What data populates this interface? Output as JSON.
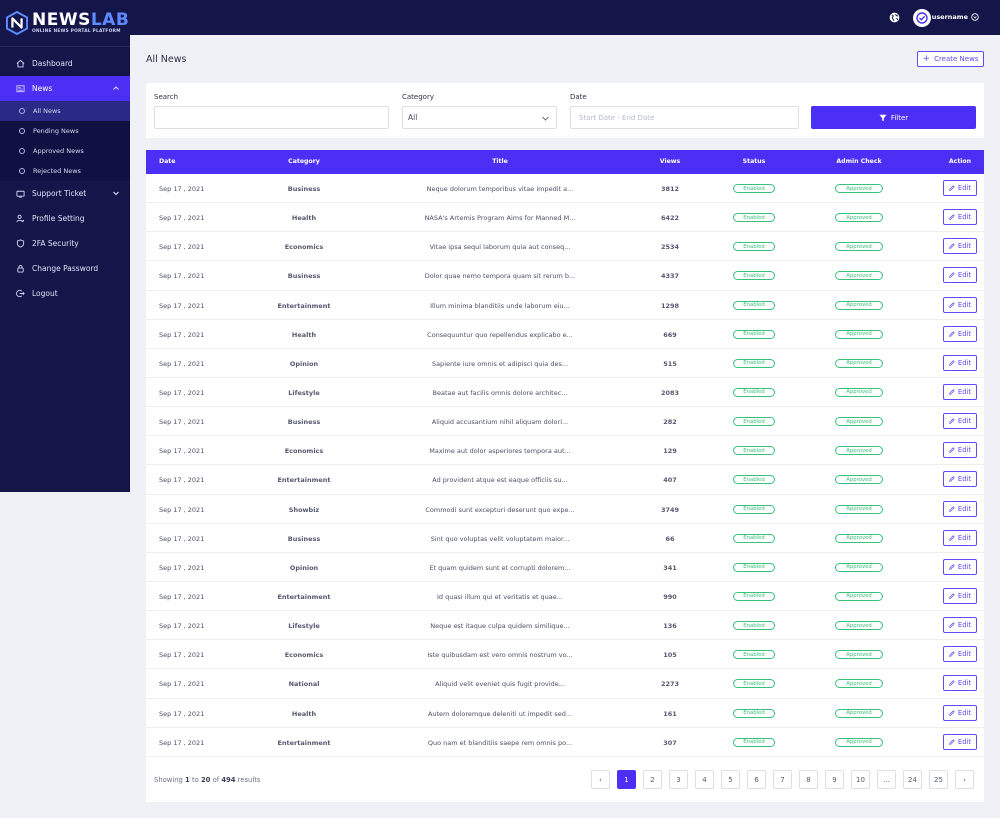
{
  "brand": {
    "name_part1": "NEWS",
    "name_part2": "LAB",
    "tagline": "ONLINE NEWS PORTAL PLATFORM"
  },
  "topbar": {
    "username": "username"
  },
  "sidebar": {
    "items": [
      {
        "label": "Dashboard",
        "icon": "home-icon"
      },
      {
        "label": "News",
        "icon": "newspaper-icon",
        "active": true
      },
      {
        "label": "Support Ticket",
        "icon": "ticket-icon"
      },
      {
        "label": "Profile Setting",
        "icon": "user-cog-icon"
      },
      {
        "label": "2FA Security",
        "icon": "shield-icon"
      },
      {
        "label": "Change Password",
        "icon": "lock-icon"
      },
      {
        "label": "Logout",
        "icon": "logout-icon"
      }
    ],
    "news_submenu": [
      "All News",
      "Pending News",
      "Approved News",
      "Rejected News"
    ]
  },
  "header": {
    "title": "All News",
    "create_label": "Create News"
  },
  "filters": {
    "search_label": "Search",
    "search_value": "",
    "category_label": "Category",
    "category_value": "All",
    "date_label": "Date",
    "date_placeholder": "Start Date - End Date",
    "filter_button": "Filter"
  },
  "table": {
    "columns": [
      "Date",
      "Category",
      "Title",
      "Views",
      "Status",
      "Admin Check",
      "Action"
    ],
    "rows": [
      {
        "date": "Sep 17 , 2021",
        "category": "Business",
        "title": "Neque dolorum temporibus vitae impedit a...",
        "views": "3812",
        "status": "Enabled",
        "admin": "Approved",
        "action": "Edit"
      },
      {
        "date": "Sep 17 , 2021",
        "category": "Health",
        "title": "NASA's Artemis Program Aims for Manned M...",
        "views": "6422",
        "status": "Enabled",
        "admin": "Approved",
        "action": "Edit"
      },
      {
        "date": "Sep 17 , 2021",
        "category": "Economics",
        "title": "Vitae ipsa sequi laborum quia aut conseq...",
        "views": "2534",
        "status": "Enabled",
        "admin": "Approved",
        "action": "Edit"
      },
      {
        "date": "Sep 17 , 2021",
        "category": "Business",
        "title": "Dolor quae nemo tempora quam sit rerum b...",
        "views": "4337",
        "status": "Enabled",
        "admin": "Approved",
        "action": "Edit"
      },
      {
        "date": "Sep 17 , 2021",
        "category": "Entertainment",
        "title": "Illum minima blanditiis unde laborum eiu...",
        "views": "1298",
        "status": "Enabled",
        "admin": "Approved",
        "action": "Edit"
      },
      {
        "date": "Sep 17 , 2021",
        "category": "Health",
        "title": "Consequuntur quo repellendus explicabo e...",
        "views": "669",
        "status": "Enabled",
        "admin": "Approved",
        "action": "Edit"
      },
      {
        "date": "Sep 17 , 2021",
        "category": "Opinion",
        "title": "Sapiente iure omnis et adipisci quia des...",
        "views": "515",
        "status": "Enabled",
        "admin": "Approved",
        "action": "Edit"
      },
      {
        "date": "Sep 17 , 2021",
        "category": "Lifestyle",
        "title": "Beatae aut facilis omnis dolore architec...",
        "views": "2083",
        "status": "Enabled",
        "admin": "Approved",
        "action": "Edit"
      },
      {
        "date": "Sep 17 , 2021",
        "category": "Business",
        "title": "Aliquid accusantium nihil aliquam dolori...",
        "views": "282",
        "status": "Enabled",
        "admin": "Approved",
        "action": "Edit"
      },
      {
        "date": "Sep 17 , 2021",
        "category": "Economics",
        "title": "Maxime aut dolor asperiores tempora aut...",
        "views": "129",
        "status": "Enabled",
        "admin": "Approved",
        "action": "Edit"
      },
      {
        "date": "Sep 17 , 2021",
        "category": "Entertainment",
        "title": "Ad provident atque est eaque officiis su...",
        "views": "407",
        "status": "Enabled",
        "admin": "Approved",
        "action": "Edit"
      },
      {
        "date": "Sep 17 , 2021",
        "category": "Showbiz",
        "title": "Commodi sunt excepturi deserunt quo expe...",
        "views": "3749",
        "status": "Enabled",
        "admin": "Approved",
        "action": "Edit"
      },
      {
        "date": "Sep 17 , 2021",
        "category": "Business",
        "title": "Sint quo voluptas velit voluptatem maior...",
        "views": "66",
        "status": "Enabled",
        "admin": "Approved",
        "action": "Edit"
      },
      {
        "date": "Sep 17 , 2021",
        "category": "Opinion",
        "title": "Et quam quidem sunt et corrupti dolorem...",
        "views": "341",
        "status": "Enabled",
        "admin": "Approved",
        "action": "Edit"
      },
      {
        "date": "Sep 17 , 2021",
        "category": "Entertainment",
        "title": "Id quasi illum qui et veritatis et quae...",
        "views": "990",
        "status": "Enabled",
        "admin": "Approved",
        "action": "Edit"
      },
      {
        "date": "Sep 17 , 2021",
        "category": "Lifestyle",
        "title": "Neque est itaque culpa quidem similique...",
        "views": "136",
        "status": "Enabled",
        "admin": "Approved",
        "action": "Edit"
      },
      {
        "date": "Sep 17 , 2021",
        "category": "Economics",
        "title": "Iste quibusdam est vero omnis nostrum vo...",
        "views": "105",
        "status": "Enabled",
        "admin": "Approved",
        "action": "Edit"
      },
      {
        "date": "Sep 17 , 2021",
        "category": "National",
        "title": "Aliquid velit eveniet quis fugit provide...",
        "views": "2273",
        "status": "Enabled",
        "admin": "Approved",
        "action": "Edit"
      },
      {
        "date": "Sep 17 , 2021",
        "category": "Health",
        "title": "Autem doloremque deleniti ut impedit sed...",
        "views": "161",
        "status": "Enabled",
        "admin": "Approved",
        "action": "Edit"
      },
      {
        "date": "Sep 17 , 2021",
        "category": "Entertainment",
        "title": "Quo nam et blanditiis saepe rem omnis po...",
        "views": "307",
        "status": "Enabled",
        "admin": "Approved",
        "action": "Edit"
      }
    ]
  },
  "footer": {
    "showing_prefix": "Showing",
    "from": "1",
    "to_word": "to",
    "to": "20",
    "of_word": "of",
    "total": "494",
    "suffix": "results"
  },
  "pagination": {
    "prev": "‹",
    "next": "›",
    "pages": [
      "1",
      "2",
      "3",
      "4",
      "5",
      "6",
      "7",
      "8",
      "9",
      "10",
      "...",
      "24",
      "25"
    ],
    "current": "1"
  },
  "colors": {
    "sidebar_bg": "#14164a",
    "accent": "#4c2ff5",
    "success": "#39c17a",
    "page_bg": "#eff1f6"
  }
}
